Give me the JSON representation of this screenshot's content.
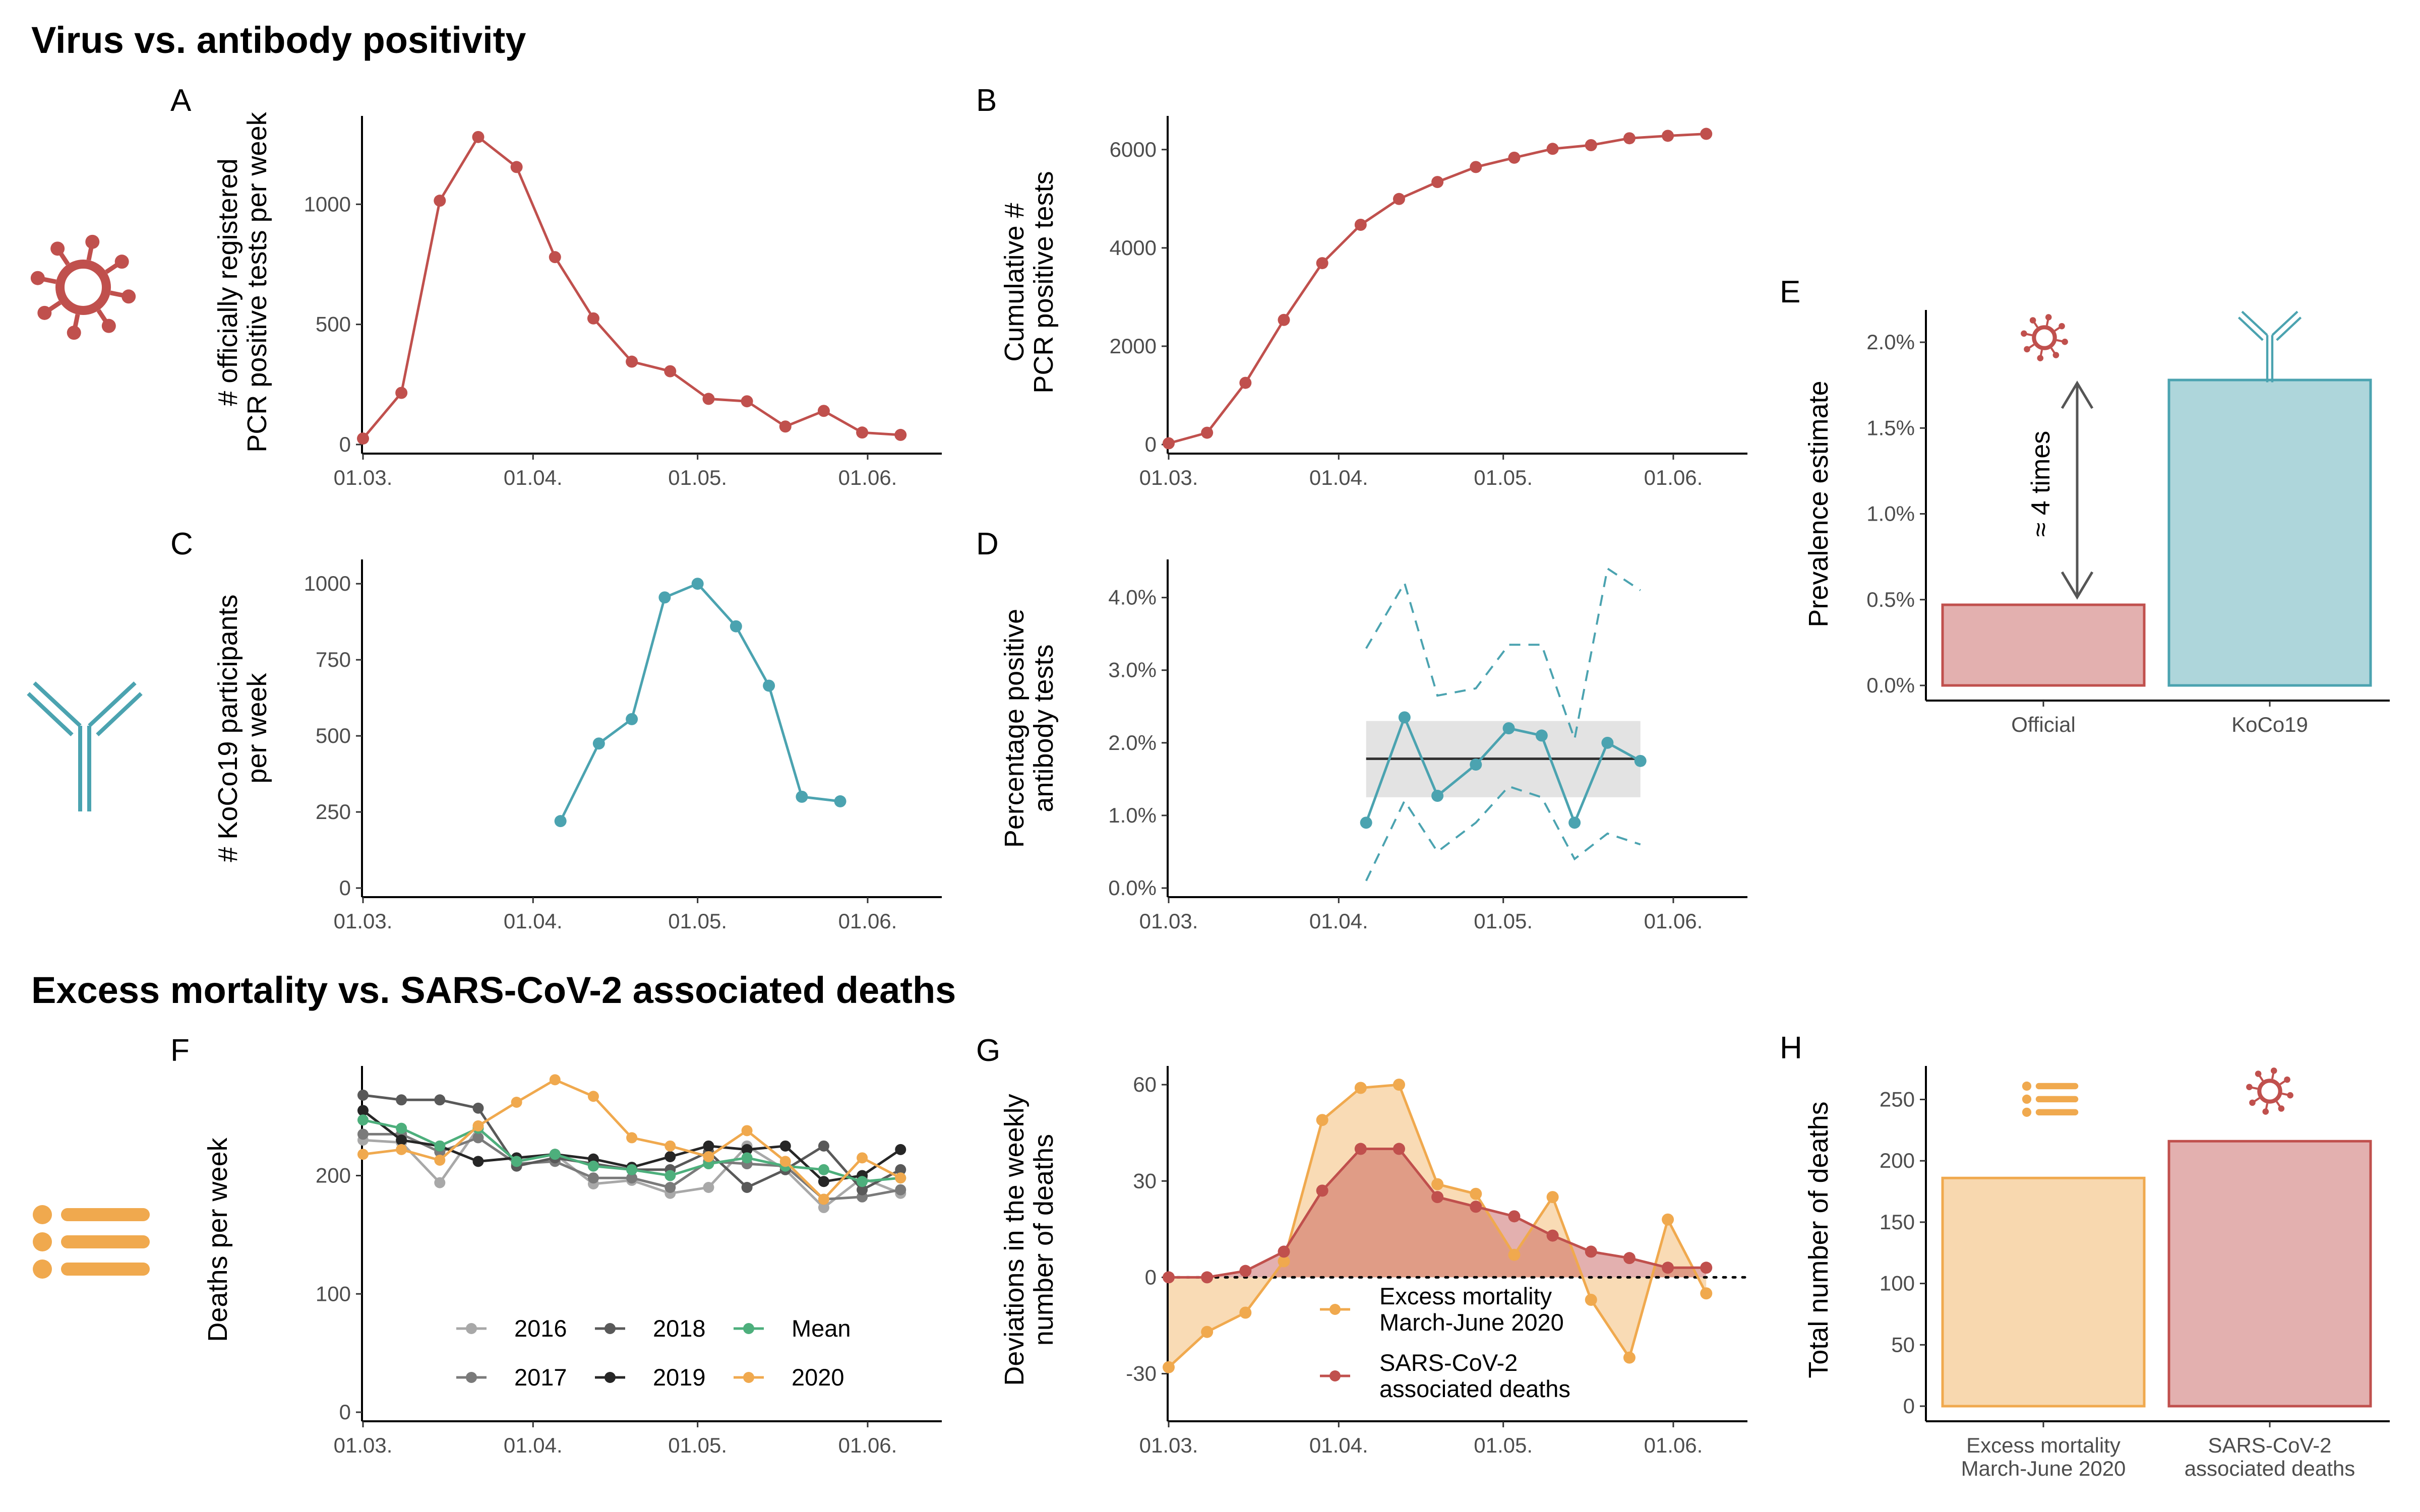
{
  "sections": {
    "top_title": "Virus vs. antibody positivity",
    "bottom_title": "Excess mortality vs. SARS-CoV-2 associated deaths"
  },
  "colors": {
    "virus": "#c0504d",
    "antibody": "#4ba3b0",
    "mortality": "#f0a94e",
    "mean": "#4daf7c",
    "ci_band": "#e3e3e3"
  },
  "icons": [
    "virus-icon",
    "antibody-icon",
    "list-icon"
  ],
  "chart_data": [
    {
      "panel": "A",
      "type": "line",
      "ylabel": "# officially registered\nPCR positive tests per week",
      "x_ticks": [
        "01.03.",
        "01.04.",
        "01.05.",
        "01.06."
      ],
      "y_ticks": [
        "0",
        "500",
        "1000"
      ],
      "ylim": [
        0,
        1330
      ],
      "x_days": [
        1,
        8,
        15,
        22,
        29,
        36,
        43,
        50,
        57,
        64,
        71,
        78,
        85,
        92,
        99
      ],
      "values": [
        25,
        215,
        1015,
        1280,
        1155,
        780,
        525,
        345,
        305,
        190,
        180,
        75,
        140,
        50,
        40
      ]
    },
    {
      "panel": "B",
      "type": "line",
      "ylabel": "Cumulative #\nPCR positive tests",
      "x_ticks": [
        "01.03.",
        "01.04.",
        "01.05.",
        "01.06."
      ],
      "y_ticks": [
        "0",
        "2000",
        "4000",
        "6000"
      ],
      "ylim": [
        0,
        6500
      ],
      "x_days": [
        1,
        8,
        15,
        22,
        29,
        36,
        43,
        50,
        57,
        64,
        71,
        78,
        85,
        92,
        99
      ],
      "values": [
        25,
        240,
        1255,
        2535,
        3690,
        4470,
        4995,
        5340,
        5645,
        5835,
        6015,
        6090,
        6230,
        6280,
        6320
      ]
    },
    {
      "panel": "C",
      "type": "line",
      "ylabel": "# KoCo19 participants\nper week",
      "x_ticks": [
        "01.03.",
        "01.04.",
        "01.05.",
        "01.06."
      ],
      "y_ticks": [
        "0",
        "250",
        "500",
        "750",
        "1000"
      ],
      "ylim": [
        0,
        1050
      ],
      "x_days": [
        37,
        44,
        50,
        56,
        62,
        69,
        75,
        81,
        88
      ],
      "values": [
        220,
        475,
        555,
        955,
        1000,
        860,
        665,
        300,
        285
      ]
    },
    {
      "panel": "D",
      "type": "line",
      "ylabel": "Percentage positive\nantibody tests",
      "x_ticks": [
        "01.03.",
        "01.04.",
        "01.05.",
        "01.06."
      ],
      "y_ticks": [
        "0.0%",
        "1.0%",
        "2.0%",
        "3.0%",
        "4.0%"
      ],
      "ylim": [
        0,
        4.4
      ],
      "x_days": [
        37,
        44,
        50,
        57,
        63,
        69,
        75,
        81,
        87
      ],
      "values": [
        0.9,
        2.35,
        1.27,
        1.7,
        2.2,
        2.1,
        0.9,
        2.0,
        1.75
      ],
      "upper": [
        3.3,
        4.2,
        2.65,
        2.75,
        3.35,
        3.35,
        2.05,
        4.4,
        4.1
      ],
      "lower": [
        0.1,
        1.2,
        0.5,
        0.9,
        1.4,
        1.25,
        0.4,
        0.75,
        0.6
      ],
      "estimate": 1.78,
      "ci": [
        1.25,
        2.3
      ],
      "band_x_days": [
        37,
        87
      ]
    },
    {
      "panel": "E",
      "type": "bar",
      "ylabel": "Prevalence estimate",
      "categories": [
        "Official",
        "KoCo19"
      ],
      "values": [
        0.47,
        1.78
      ],
      "y_ticks": [
        "0.0%",
        "0.5%",
        "1.0%",
        "1.5%",
        "2.0%"
      ],
      "ylim": [
        0,
        2.1
      ],
      "annotation": "≈ 4 times"
    },
    {
      "panel": "F",
      "type": "line",
      "ylabel": "Deaths per week",
      "x_ticks": [
        "01.03.",
        "01.04.",
        "01.05.",
        "01.06."
      ],
      "y_ticks": [
        "0",
        "100",
        "200"
      ],
      "ylim": [
        0,
        285
      ],
      "x_days": [
        1,
        8,
        15,
        22,
        29,
        36,
        43,
        50,
        57,
        64,
        71,
        78,
        85,
        92,
        99
      ],
      "series": [
        {
          "name": "2016",
          "values": [
            230,
            228,
            194,
            240,
            212,
            218,
            193,
            196,
            185,
            190,
            225,
            205,
            173,
            198,
            185
          ]
        },
        {
          "name": "2017",
          "values": [
            235,
            235,
            220,
            232,
            210,
            212,
            198,
            198,
            190,
            212,
            210,
            208,
            180,
            182,
            188
          ]
        },
        {
          "name": "2018",
          "values": [
            268,
            264,
            264,
            257,
            208,
            215,
            210,
            205,
            205,
            220,
            190,
            205,
            225,
            188,
            205
          ]
        },
        {
          "name": "2019",
          "values": [
            255,
            230,
            225,
            212,
            215,
            218,
            214,
            207,
            216,
            225,
            222,
            225,
            195,
            200,
            222
          ]
        },
        {
          "name": "Mean",
          "values": [
            247,
            240,
            225,
            240,
            212,
            218,
            208,
            205,
            200,
            210,
            215,
            208,
            205,
            195,
            198
          ]
        },
        {
          "name": "2020",
          "values": [
            218,
            222,
            213,
            242,
            262,
            281,
            267,
            232,
            225,
            216,
            238,
            212,
            180,
            215,
            198
          ]
        }
      ],
      "series_colors": [
        "#a8a8a8",
        "#7a7a7a",
        "#595959",
        "#262626",
        "#4daf7c",
        "#f0a94e"
      ]
    },
    {
      "panel": "G",
      "type": "area",
      "ylabel": "Deviations in the weekly\nnumber of deaths",
      "x_ticks": [
        "01.03.",
        "01.04.",
        "01.05.",
        "01.06."
      ],
      "y_ticks": [
        "-30",
        "0",
        "30",
        "60"
      ],
      "ylim": [
        -42,
        63
      ],
      "x_days": [
        1,
        8,
        15,
        22,
        29,
        36,
        43,
        50,
        57,
        64,
        71,
        78,
        85,
        92,
        99
      ],
      "series": [
        {
          "name": "Excess mortality\nMarch-June 2020",
          "values": [
            -28,
            -17,
            -11,
            5,
            49,
            59,
            60,
            29,
            26,
            7,
            25,
            -7,
            -25,
            18,
            -5
          ]
        },
        {
          "name": "SARS-CoV-2\nassociated deaths",
          "values": [
            0,
            0,
            2,
            8,
            27,
            40,
            40,
            25,
            22,
            19,
            13,
            8,
            6,
            3,
            3
          ]
        }
      ]
    },
    {
      "panel": "H",
      "type": "bar",
      "ylabel": "Total number of deaths",
      "categories": [
        "Excess mortality\nMarch-June 2020",
        "SARS-CoV-2\nassociated deaths"
      ],
      "values": [
        186,
        216
      ],
      "y_ticks": [
        "0",
        "50",
        "100",
        "150",
        "200",
        "250"
      ],
      "ylim": [
        0,
        265
      ]
    }
  ]
}
